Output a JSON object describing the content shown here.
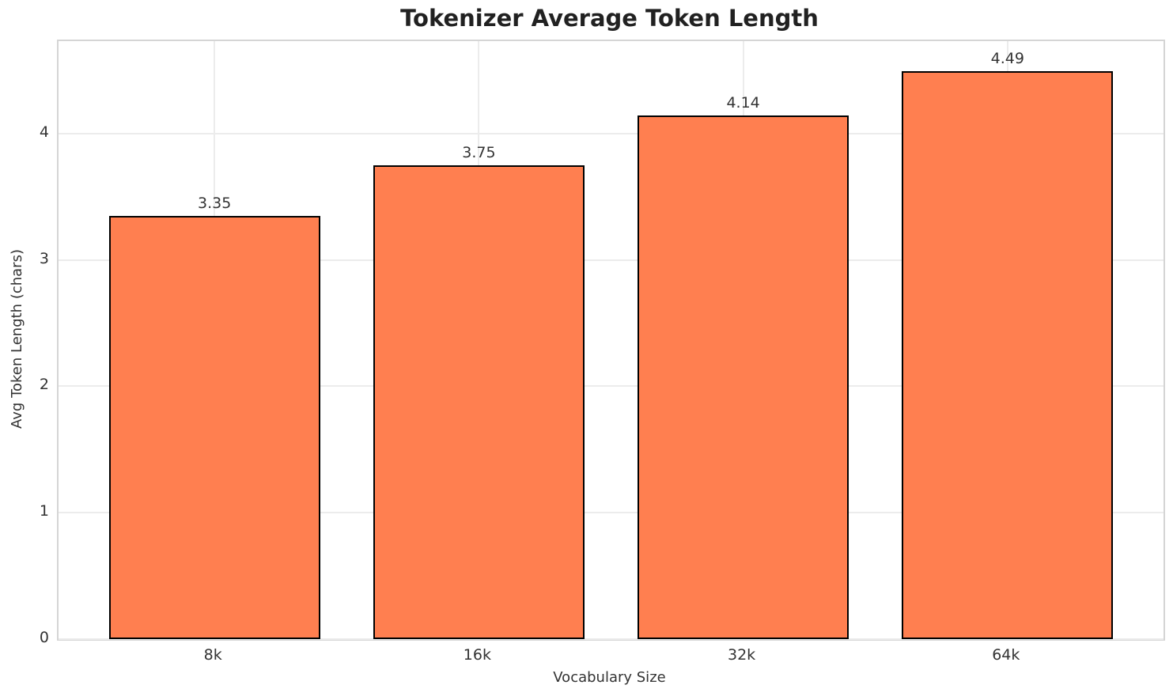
{
  "chart_data": {
    "type": "bar",
    "title": "Tokenizer Average Token Length",
    "xlabel": "Vocabulary Size",
    "ylabel": "Avg Token Length (chars)",
    "categories": [
      "8k",
      "16k",
      "32k",
      "64k"
    ],
    "values": [
      3.35,
      3.75,
      4.14,
      4.49
    ],
    "value_labels": [
      "3.35",
      "3.75",
      "4.14",
      "4.49"
    ],
    "yticks": [
      0,
      1,
      2,
      3,
      4
    ],
    "ylim": [
      0,
      4.73
    ],
    "xlim": [
      -0.59,
      3.59
    ],
    "bar_width_units": 0.8,
    "grid": true,
    "legend": "none",
    "colors": {
      "bar_fill": "#FF7F50",
      "bar_edge": "#000000",
      "grid_line": "#ececec",
      "spine": "#d5d5d5",
      "tick_text": "#333333",
      "title_text": "#212121"
    }
  }
}
